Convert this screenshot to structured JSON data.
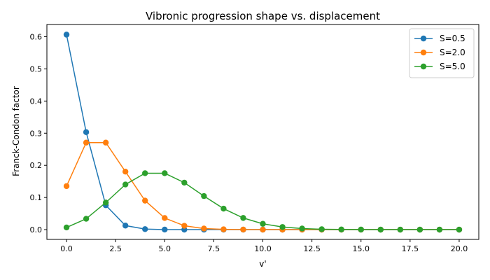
{
  "chart_data": {
    "type": "line",
    "title": "Vibronic progression shape vs. displacement",
    "xlabel": "v'",
    "ylabel": "Franck-Condon factor",
    "xlim": [
      -1,
      21
    ],
    "ylim": [
      -0.0304,
      0.6381
    ],
    "xticks": [
      "0.0",
      "2.5",
      "5.0",
      "7.5",
      "10.0",
      "12.5",
      "15.0",
      "17.5",
      "20.0"
    ],
    "xtick_values": [
      0,
      2.5,
      5,
      7.5,
      10,
      12.5,
      15,
      17.5,
      20
    ],
    "yticks": [
      "0.0",
      "0.1",
      "0.2",
      "0.3",
      "0.4",
      "0.5",
      "0.6"
    ],
    "ytick_values": [
      0,
      0.1,
      0.2,
      0.3,
      0.4,
      0.5,
      0.6
    ],
    "grid": false,
    "legend_position": "top-right",
    "x": [
      0,
      1,
      2,
      3,
      4,
      5,
      6,
      7,
      8,
      9,
      10,
      11,
      12,
      13,
      14,
      15,
      16,
      17,
      18,
      19,
      20
    ],
    "series": [
      {
        "name": "S=0.5",
        "color": "#1f77b4",
        "values": [
          0.6065,
          0.3033,
          0.0758,
          0.0126,
          0.0016,
          0.0002,
          0.0,
          0.0,
          0.0,
          0.0,
          0.0,
          0.0,
          0.0,
          0.0,
          0.0,
          0.0,
          0.0,
          0.0,
          0.0,
          0.0,
          0.0
        ]
      },
      {
        "name": "S=2.0",
        "color": "#ff7f0e",
        "values": [
          0.1353,
          0.2707,
          0.2707,
          0.1804,
          0.0902,
          0.0361,
          0.012,
          0.0034,
          0.0009,
          0.0002,
          0.0,
          0.0,
          0.0,
          0.0,
          0.0,
          0.0,
          0.0,
          0.0,
          0.0,
          0.0,
          0.0
        ]
      },
      {
        "name": "S=5.0",
        "color": "#2ca02c",
        "values": [
          0.0067,
          0.0337,
          0.0842,
          0.1404,
          0.1755,
          0.1755,
          0.1462,
          0.1044,
          0.0653,
          0.0363,
          0.0181,
          0.0082,
          0.0034,
          0.0013,
          0.0005,
          0.0002,
          0.0,
          0.0,
          0.0,
          0.0,
          0.0
        ]
      }
    ]
  }
}
